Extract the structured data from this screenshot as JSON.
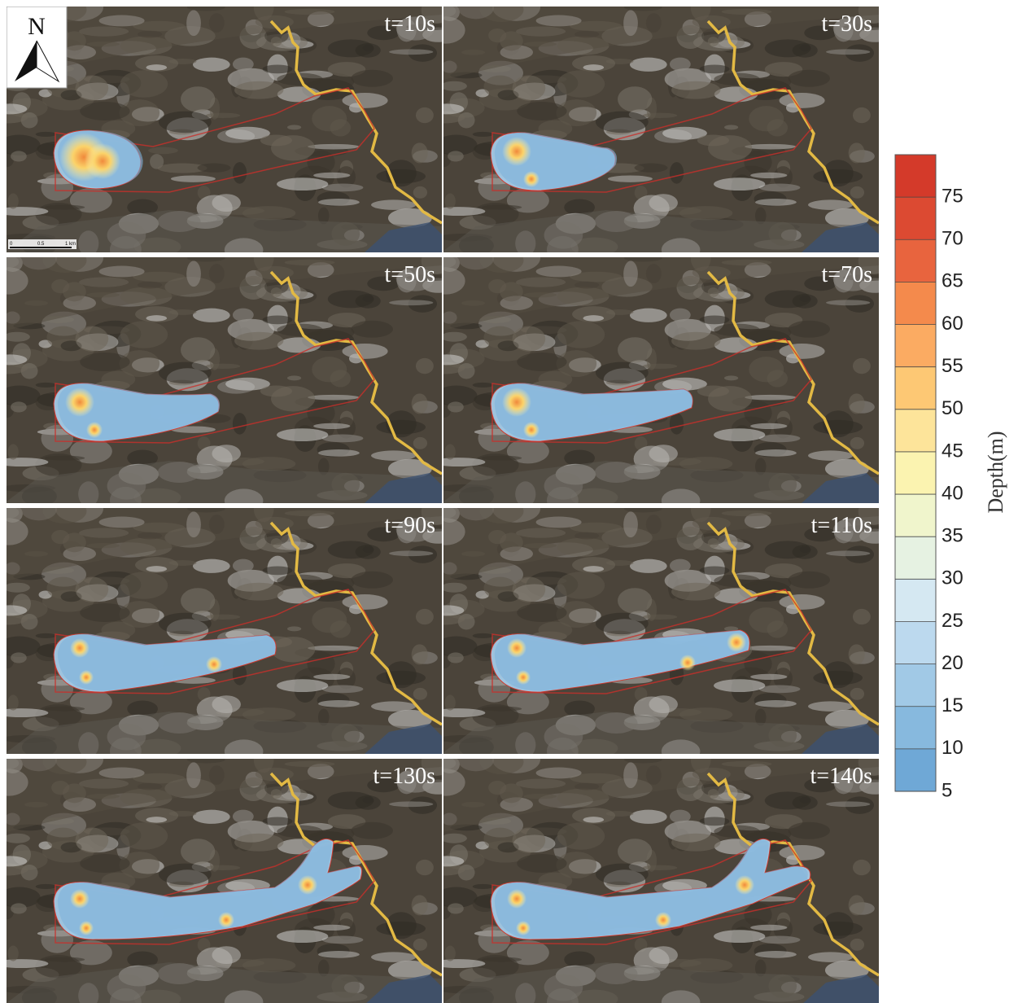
{
  "panels": [
    {
      "label": "t=10s"
    },
    {
      "label": "t=30s"
    },
    {
      "label": "t=50s"
    },
    {
      "label": "t=70s"
    },
    {
      "label": "t=90s"
    },
    {
      "label": "t=110s"
    },
    {
      "label": "t=130s"
    },
    {
      "label": "t=140s"
    }
  ],
  "north": "N",
  "scale_bar": [
    "0",
    "0.5",
    "1 km"
  ],
  "colorbar": {
    "label": "Depth(m)",
    "lim": [
      5,
      80
    ],
    "ticks": [
      5,
      10,
      15,
      20,
      25,
      30,
      35,
      40,
      45,
      50,
      55,
      60,
      65,
      70,
      75
    ],
    "colors": [
      "#6fa8d6",
      "#87b9de",
      "#a1c9e6",
      "#bcd9ee",
      "#d5e8f2",
      "#e6f2e2",
      "#f0f5cc",
      "#fbf3b0",
      "#fde49a",
      "#fdc874",
      "#fbab62",
      "#f48a4c",
      "#e8643e",
      "#dc4a32",
      "#d43a2a"
    ]
  }
}
